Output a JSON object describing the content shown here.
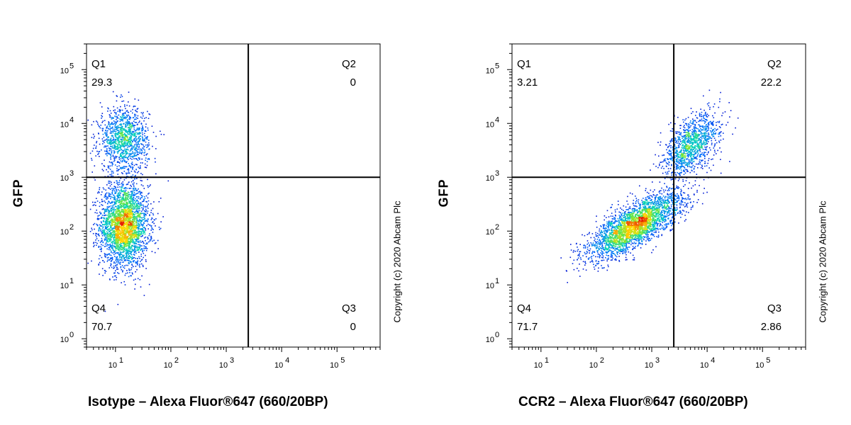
{
  "chart_data": [
    {
      "type": "scatter",
      "ylabel": "GFP",
      "xlabel": "Isotype – Alexa Fluor®647 (660/20BP)",
      "copyright": "Copyright (c) 2020 Abcam Plc",
      "x_scale": "log",
      "y_scale": "log",
      "xlim": [
        3,
        600000
      ],
      "ylim": [
        0.7,
        300000
      ],
      "x_tick_labels": [
        "10^1",
        "10^2",
        "10^3",
        "10^4",
        "10^5"
      ],
      "y_tick_labels": [
        "10^0",
        "10^1",
        "10^2",
        "10^3",
        "10^4",
        "10^5"
      ],
      "gate": {
        "x": 2500,
        "y": 1000
      },
      "quadrants": [
        {
          "name": "Q1",
          "value": "29.3",
          "position": "top-left"
        },
        {
          "name": "Q2",
          "value": "0",
          "position": "top-right"
        },
        {
          "name": "Q3",
          "value": "0",
          "position": "bottom-right"
        },
        {
          "name": "Q4",
          "value": "70.7",
          "position": "bottom-left"
        }
      ],
      "populations": [
        {
          "x_center": 14,
          "y_center": 130,
          "x_spread": 0.22,
          "y_spread": 0.38,
          "fraction": 0.71
        },
        {
          "x_center": 14,
          "y_center": 5000,
          "x_spread": 0.22,
          "y_spread": 0.3,
          "fraction": 0.29
        }
      ]
    },
    {
      "type": "scatter",
      "ylabel": "GFP",
      "xlabel": "CCR2 – Alexa Fluor®647 (660/20BP)",
      "copyright": "Copyright (c) 2020 Abcam Plc",
      "x_scale": "log",
      "y_scale": "log",
      "xlim": [
        3,
        600000
      ],
      "ylim": [
        0.7,
        300000
      ],
      "x_tick_labels": [
        "10^1",
        "10^2",
        "10^3",
        "10^4",
        "10^5"
      ],
      "y_tick_labels": [
        "10^0",
        "10^1",
        "10^2",
        "10^3",
        "10^4",
        "10^5"
      ],
      "gate": {
        "x": 2500,
        "y": 1000
      },
      "quadrants": [
        {
          "name": "Q1",
          "value": "3.21",
          "position": "top-left"
        },
        {
          "name": "Q2",
          "value": "22.2",
          "position": "top-right"
        },
        {
          "name": "Q3",
          "value": "2.86",
          "position": "bottom-right"
        },
        {
          "name": "Q4",
          "value": "71.7",
          "position": "bottom-left"
        }
      ],
      "populations": [
        {
          "x_center": 500,
          "y_center": 130,
          "x_spread": 0.42,
          "y_spread": 0.3,
          "correlation": 0.75,
          "fraction": 0.72
        },
        {
          "x_center": 5000,
          "y_center": 4000,
          "x_spread": 0.25,
          "y_spread": 0.3,
          "correlation": 0.5,
          "fraction": 0.28
        }
      ]
    }
  ]
}
